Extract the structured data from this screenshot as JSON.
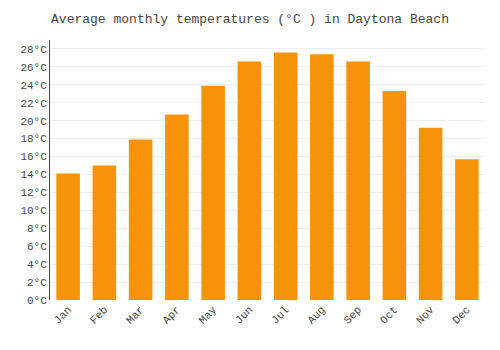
{
  "chart_data": {
    "type": "bar",
    "title": "Average monthly temperatures (°C ) in Daytona Beach",
    "categories": [
      "Jan",
      "Feb",
      "Mar",
      "Apr",
      "May",
      "Jun",
      "Jul",
      "Aug",
      "Sep",
      "Oct",
      "Nov",
      "Dec"
    ],
    "values": [
      14.1,
      15.0,
      17.9,
      20.7,
      23.9,
      26.6,
      27.6,
      27.4,
      26.6,
      23.3,
      19.2,
      15.7
    ],
    "color": "#F5940A",
    "ylim": [
      0,
      29
    ],
    "yticks": [
      {
        "value": 0,
        "label": "0°C"
      },
      {
        "value": 2,
        "label": "2°C"
      },
      {
        "value": 4,
        "label": "4°C"
      },
      {
        "value": 6,
        "label": "6°C"
      },
      {
        "value": 8,
        "label": "8°C"
      },
      {
        "value": 10,
        "label": "10°C"
      },
      {
        "value": 12,
        "label": "12°C"
      },
      {
        "value": 14,
        "label": "14°C"
      },
      {
        "value": 16,
        "label": "16°C"
      },
      {
        "value": 18,
        "label": "18°C"
      },
      {
        "value": 20,
        "label": "20°C"
      },
      {
        "value": 22,
        "label": "22°C"
      },
      {
        "value": 24,
        "label": "24°C"
      },
      {
        "value": 26,
        "label": "26°C"
      },
      {
        "value": 28,
        "label": "28°C"
      }
    ],
    "grid": true
  }
}
